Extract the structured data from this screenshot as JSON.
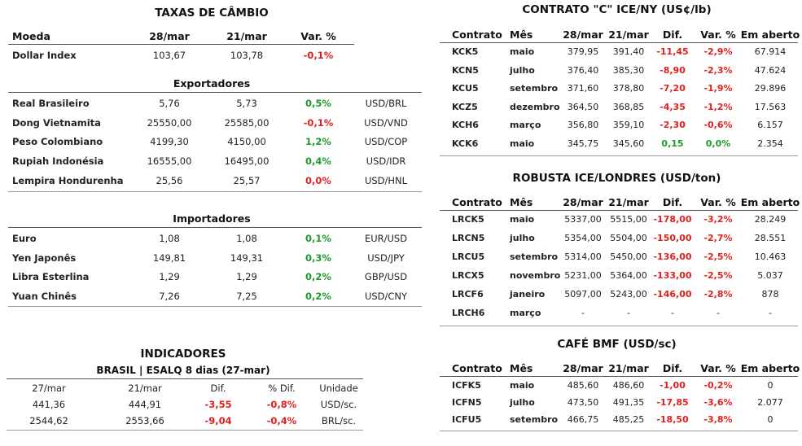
{
  "taxas": {
    "title": "TAXAS DE CÂMBIO",
    "headers": {
      "moeda": "Moeda",
      "d1": "28/mar",
      "d2": "21/mar",
      "var": "Var. %"
    },
    "dollar_index": {
      "name": "Dollar Index",
      "v1": "103,67",
      "v2": "103,78",
      "var": "-0,1%"
    },
    "exportadores_label": "Exportadores",
    "exportadores": [
      {
        "name": "Real Brasileiro",
        "v1": "5,76",
        "v2": "5,73",
        "var": "0,5%",
        "pair": "USD/BRL"
      },
      {
        "name": "Dong Vietnamita",
        "v1": "25550,00",
        "v2": "25585,00",
        "var": "-0,1%",
        "pair": "USD/VND"
      },
      {
        "name": "Peso Colombiano",
        "v1": "4199,30",
        "v2": "4150,00",
        "var": "1,2%",
        "pair": "USD/COP"
      },
      {
        "name": "Rupiah Indonésia",
        "v1": "16555,00",
        "v2": "16495,00",
        "var": "0,4%",
        "pair": "USD/IDR"
      },
      {
        "name": "Lempira Hondurenha",
        "v1": "25,56",
        "v2": "25,57",
        "var": "0,0%",
        "pair": "USD/HNL"
      }
    ],
    "importadores_label": "Importadores",
    "importadores": [
      {
        "name": "Euro",
        "v1": "1,08",
        "v2": "1,08",
        "var": "0,1%",
        "pair": "EUR/USD"
      },
      {
        "name": "Yen Japonês",
        "v1": "149,81",
        "v2": "149,31",
        "var": "0,3%",
        "pair": "USD/JPY"
      },
      {
        "name": "Libra Esterlina",
        "v1": "1,29",
        "v2": "1,29",
        "var": "0,2%",
        "pair": "GBP/USD"
      },
      {
        "name": "Yuan Chinês",
        "v1": "7,26",
        "v2": "7,25",
        "var": "0,2%",
        "pair": "USD/CNY"
      }
    ]
  },
  "indicadores": {
    "title": "INDICADORES",
    "subtitle": "BRASIL | ESALQ 8 dias (27-mar)",
    "headers": {
      "d1": "27/mar",
      "d2": "21/mar",
      "dif": "Dif.",
      "pdif": "% Dif.",
      "unid": "Unidade"
    },
    "rows": [
      {
        "v1": "441,36",
        "v2": "444,91",
        "dif": "-3,55",
        "pdif": "-0,8%",
        "unid": "USD/sc."
      },
      {
        "v1": "2544,62",
        "v2": "2553,66",
        "dif": "-9,04",
        "pdif": "-0,4%",
        "unid": "BRL/sc."
      }
    ]
  },
  "contrato_c": {
    "title": "CONTRATO \"C\" ICE/NY (US¢/lb)",
    "headers": {
      "contrato": "Contrato",
      "mes": "Mês",
      "d1": "28/mar",
      "d2": "21/mar",
      "dif": "Dif.",
      "var": "Var. %",
      "aberto": "Em aberto"
    },
    "rows": [
      {
        "contrato": "KCK5",
        "mes": "maio",
        "v1": "379,95",
        "v2": "391,40",
        "dif": "-11,45",
        "var": "-2,9%",
        "aberto": "67.914"
      },
      {
        "contrato": "KCN5",
        "mes": "julho",
        "v1": "376,40",
        "v2": "385,30",
        "dif": "-8,90",
        "var": "-2,3%",
        "aberto": "47.624"
      },
      {
        "contrato": "KCU5",
        "mes": "setembro",
        "v1": "371,60",
        "v2": "378,80",
        "dif": "-7,20",
        "var": "-1,9%",
        "aberto": "29.896"
      },
      {
        "contrato": "KCZ5",
        "mes": "dezembro",
        "v1": "364,50",
        "v2": "368,85",
        "dif": "-4,35",
        "var": "-1,2%",
        "aberto": "17.563"
      },
      {
        "contrato": "KCH6",
        "mes": "março",
        "v1": "356,80",
        "v2": "359,10",
        "dif": "-2,30",
        "var": "-0,6%",
        "aberto": "6.157"
      },
      {
        "contrato": "KCK6",
        "mes": "maio",
        "v1": "345,75",
        "v2": "345,60",
        "dif": "0,15",
        "var": "0,0%",
        "aberto": "2.354"
      }
    ]
  },
  "robusta": {
    "title": "ROBUSTA ICE/LONDRES (USD/ton)",
    "headers": {
      "contrato": "Contrato",
      "mes": "Mês",
      "d1": "28/mar",
      "d2": "21/mar",
      "dif": "Dif.",
      "var": "Var. %",
      "aberto": "Em aberto"
    },
    "rows": [
      {
        "contrato": "LRCK5",
        "mes": "maio",
        "v1": "5337,00",
        "v2": "5515,00",
        "dif": "-178,00",
        "var": "-3,2%",
        "aberto": "28.249"
      },
      {
        "contrato": "LRCN5",
        "mes": "julho",
        "v1": "5354,00",
        "v2": "5504,00",
        "dif": "-150,00",
        "var": "-2,7%",
        "aberto": "28.551"
      },
      {
        "contrato": "LRCU5",
        "mes": "setembro",
        "v1": "5314,00",
        "v2": "5450,00",
        "dif": "-136,00",
        "var": "-2,5%",
        "aberto": "10.463"
      },
      {
        "contrato": "LRCX5",
        "mes": "novembro",
        "v1": "5231,00",
        "v2": "5364,00",
        "dif": "-133,00",
        "var": "-2,5%",
        "aberto": "5.037"
      },
      {
        "contrato": "LRCF6",
        "mes": "janeiro",
        "v1": "5097,00",
        "v2": "5243,00",
        "dif": "-146,00",
        "var": "-2,8%",
        "aberto": "878"
      },
      {
        "contrato": "LRCH6",
        "mes": "março",
        "v1": "-",
        "v2": "-",
        "dif": "-",
        "var": "-",
        "aberto": "-"
      }
    ]
  },
  "bmf": {
    "title": "CAFÉ BMF (USD/sc)",
    "headers": {
      "contrato": "Contrato",
      "mes": "Mês",
      "d1": "28/mar",
      "d2": "21/mar",
      "dif": "Dif.",
      "var": "Var. %",
      "aberto": "Em aberto"
    },
    "rows": [
      {
        "contrato": "ICFK5",
        "mes": "maio",
        "v1": "485,60",
        "v2": "486,60",
        "dif": "-1,00",
        "var": "-0,2%",
        "aberto": "0"
      },
      {
        "contrato": "ICFN5",
        "mes": "julho",
        "v1": "473,50",
        "v2": "491,35",
        "dif": "-17,85",
        "var": "-3,6%",
        "aberto": "2.077"
      },
      {
        "contrato": "ICFU5",
        "mes": "setembro",
        "v1": "466,75",
        "v2": "485,25",
        "dif": "-18,50",
        "var": "-3,8%",
        "aberto": "0"
      }
    ]
  },
  "colors": {
    "negative": "#e0201b",
    "positive": "#1e9a2a"
  }
}
